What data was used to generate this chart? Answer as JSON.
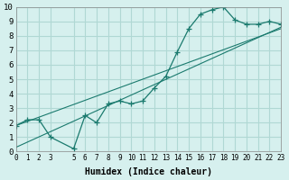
{
  "xlabel": "Humidex (Indice chaleur)",
  "background_color": "#d6f0ee",
  "grid_color": "#b0d8d4",
  "line_color": "#1a7a6e",
  "x_ticks": [
    0,
    1,
    2,
    3,
    5,
    6,
    7,
    8,
    9,
    10,
    11,
    12,
    13,
    14,
    15,
    16,
    17,
    18,
    19,
    20,
    21,
    22,
    23
  ],
  "xlim": [
    0,
    23
  ],
  "ylim": [
    0,
    10
  ],
  "y_ticks": [
    0,
    1,
    2,
    3,
    4,
    5,
    6,
    7,
    8,
    9,
    10
  ],
  "curve1_x": [
    0,
    1,
    2,
    3,
    5,
    6,
    7,
    8,
    9,
    10,
    11,
    12,
    13,
    14,
    15,
    16,
    17,
    18,
    19,
    20,
    21,
    22,
    23
  ],
  "curve1_y": [
    1.8,
    2.2,
    2.2,
    1.0,
    0.2,
    2.5,
    2.0,
    3.3,
    3.5,
    3.3,
    3.5,
    4.4,
    5.2,
    6.9,
    8.5,
    9.5,
    9.8,
    10.0,
    9.1,
    8.8,
    8.8,
    9.0,
    8.8
  ],
  "curve2_x": [
    0,
    23
  ],
  "curve2_y": [
    0.3,
    8.6
  ],
  "curve3_x": [
    0,
    23
  ],
  "curve3_y": [
    1.8,
    8.5
  ]
}
